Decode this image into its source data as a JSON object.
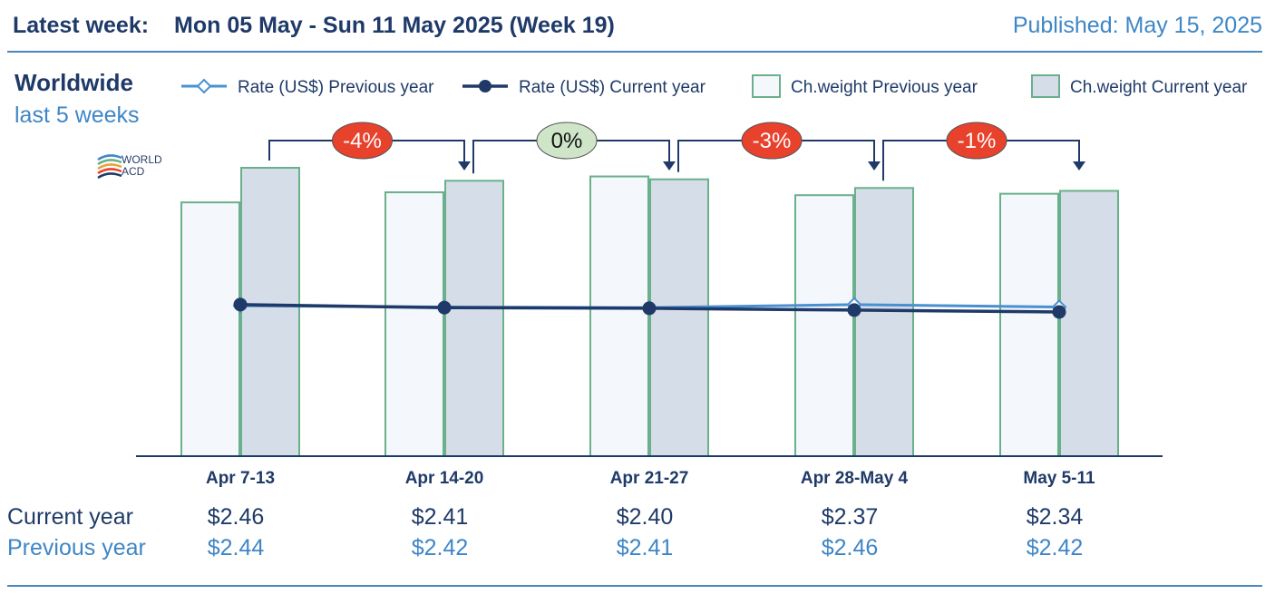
{
  "header": {
    "label": "Latest week:",
    "week": "Mon 05 May - Sun 11 May 2025 (Week 19)",
    "published": "Published: May 15, 2025"
  },
  "subtitle": {
    "region": "Worldwide",
    "period": "last 5 weeks"
  },
  "logo": {
    "line1": "WORLD",
    "line2": "ACD"
  },
  "table": {
    "current_label": "Current year",
    "previous_label": "Previous year",
    "current": [
      "$2.46",
      "$2.41",
      "$2.40",
      "$2.37",
      "$2.34"
    ],
    "previous": [
      "$2.44",
      "$2.42",
      "$2.41",
      "$2.46",
      "$2.42"
    ]
  },
  "chart_data": {
    "type": "bar",
    "categories": [
      "Apr 7-13",
      "Apr 14-20",
      "Apr 21-27",
      "Apr 28-May 4",
      "May 5-11"
    ],
    "legend": [
      {
        "name": "Rate (US$) Previous year",
        "kind": "line",
        "color": "#4a90d0"
      },
      {
        "name": "Rate (US$) Current year",
        "kind": "line",
        "color": "#1f3a68"
      },
      {
        "name": "Ch.weight Previous year",
        "kind": "bar",
        "color": "#f4f7fc"
      },
      {
        "name": "Ch.weight Current year",
        "kind": "bar",
        "color": "#d5dde8"
      }
    ],
    "chweight_index": {
      "previous": [
        0.88,
        0.915,
        0.97,
        0.905,
        0.91
      ],
      "current": [
        1.0,
        0.955,
        0.96,
        0.93,
        0.92
      ]
    },
    "rate_current": [
      2.46,
      2.41,
      2.4,
      2.37,
      2.34
    ],
    "rate_previous": [
      2.44,
      2.42,
      2.41,
      2.46,
      2.42
    ],
    "rate_ylim": [
      0,
      4.9
    ],
    "changes": [
      {
        "text": "-4%",
        "color": "#e8412c",
        "text_color": "#ffffff"
      },
      {
        "text": "0%",
        "color": "#cfe5c8",
        "text_color": "#111111"
      },
      {
        "text": "-3%",
        "color": "#e8412c",
        "text_color": "#ffffff"
      },
      {
        "text": "-1%",
        "color": "#e8412c",
        "text_color": "#ffffff"
      }
    ],
    "colors": {
      "bar_border": "#6ab08a",
      "axis": "#1f3a68"
    }
  }
}
